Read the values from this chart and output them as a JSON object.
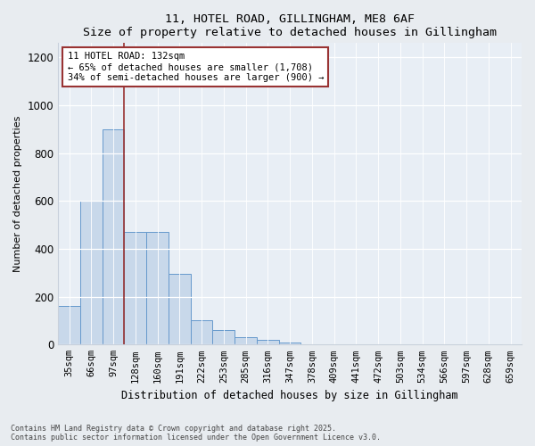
{
  "title1": "11, HOTEL ROAD, GILLINGHAM, ME8 6AF",
  "title2": "Size of property relative to detached houses in Gillingham",
  "xlabel": "Distribution of detached houses by size in Gillingham",
  "ylabel": "Number of detached properties",
  "categories": [
    "35sqm",
    "66sqm",
    "97sqm",
    "128sqm",
    "160sqm",
    "191sqm",
    "222sqm",
    "253sqm",
    "285sqm",
    "316sqm",
    "347sqm",
    "378sqm",
    "409sqm",
    "441sqm",
    "472sqm",
    "503sqm",
    "534sqm",
    "566sqm",
    "597sqm",
    "628sqm",
    "659sqm"
  ],
  "values": [
    160,
    600,
    900,
    470,
    470,
    295,
    100,
    60,
    30,
    20,
    10,
    0,
    0,
    0,
    0,
    0,
    0,
    0,
    0,
    0,
    0
  ],
  "bar_color": "#c8d8ea",
  "bar_edge_color": "#6699cc",
  "vline_color": "#993333",
  "annotation_box_text": "11 HOTEL ROAD: 132sqm\n← 65% of detached houses are smaller (1,708)\n34% of semi-detached houses are larger (900) →",
  "ylim": [
    0,
    1260
  ],
  "yticks": [
    0,
    200,
    400,
    600,
    800,
    1000,
    1200
  ],
  "footer1": "Contains HM Land Registry data © Crown copyright and database right 2025.",
  "footer2": "Contains public sector information licensed under the Open Government Licence v3.0.",
  "bg_color": "#e8ecf0",
  "plot_bg_color": "#e8eef5",
  "grid_color": "#c8d0db"
}
